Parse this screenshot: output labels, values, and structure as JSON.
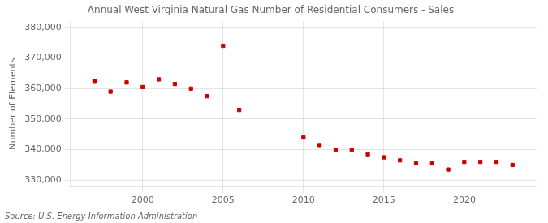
{
  "chart_data": {
    "type": "scatter",
    "title": "Annual West Virginia Natural Gas Number of Residential Consumers - Sales",
    "ylabel": "Number of Elements",
    "annotations": [
      "Source: U.S. Energy Information Administration"
    ],
    "x": [
      1997,
      1998,
      1999,
      2000,
      2001,
      2002,
      2003,
      2004,
      2005,
      2006,
      2010,
      2011,
      2012,
      2013,
      2014,
      2015,
      2016,
      2017,
      2018,
      2019,
      2020,
      2021,
      2022,
      2023
    ],
    "values": [
      362500,
      359000,
      362000,
      360500,
      363000,
      361500,
      360000,
      357500,
      374000,
      353000,
      344000,
      341500,
      340000,
      340000,
      338500,
      337500,
      336500,
      335500,
      335500,
      333500,
      336000,
      336000,
      336000,
      335000
    ],
    "color": "#cc0000",
    "marker": "square",
    "xlim": [
      1995.5,
      2024.5
    ],
    "xticks": [
      2000,
      2005,
      2010,
      2015,
      2020
    ],
    "ylim": [
      328000,
      382000
    ],
    "yticks": [
      {
        "value": 330000,
        "label": "330,000"
      },
      {
        "value": 340000,
        "label": "340,000"
      },
      {
        "value": 350000,
        "label": "350,000"
      },
      {
        "value": 360000,
        "label": "360,000"
      },
      {
        "value": 370000,
        "label": "370,000"
      },
      {
        "value": 380000,
        "label": "380,000"
      }
    ],
    "grid": true
  }
}
